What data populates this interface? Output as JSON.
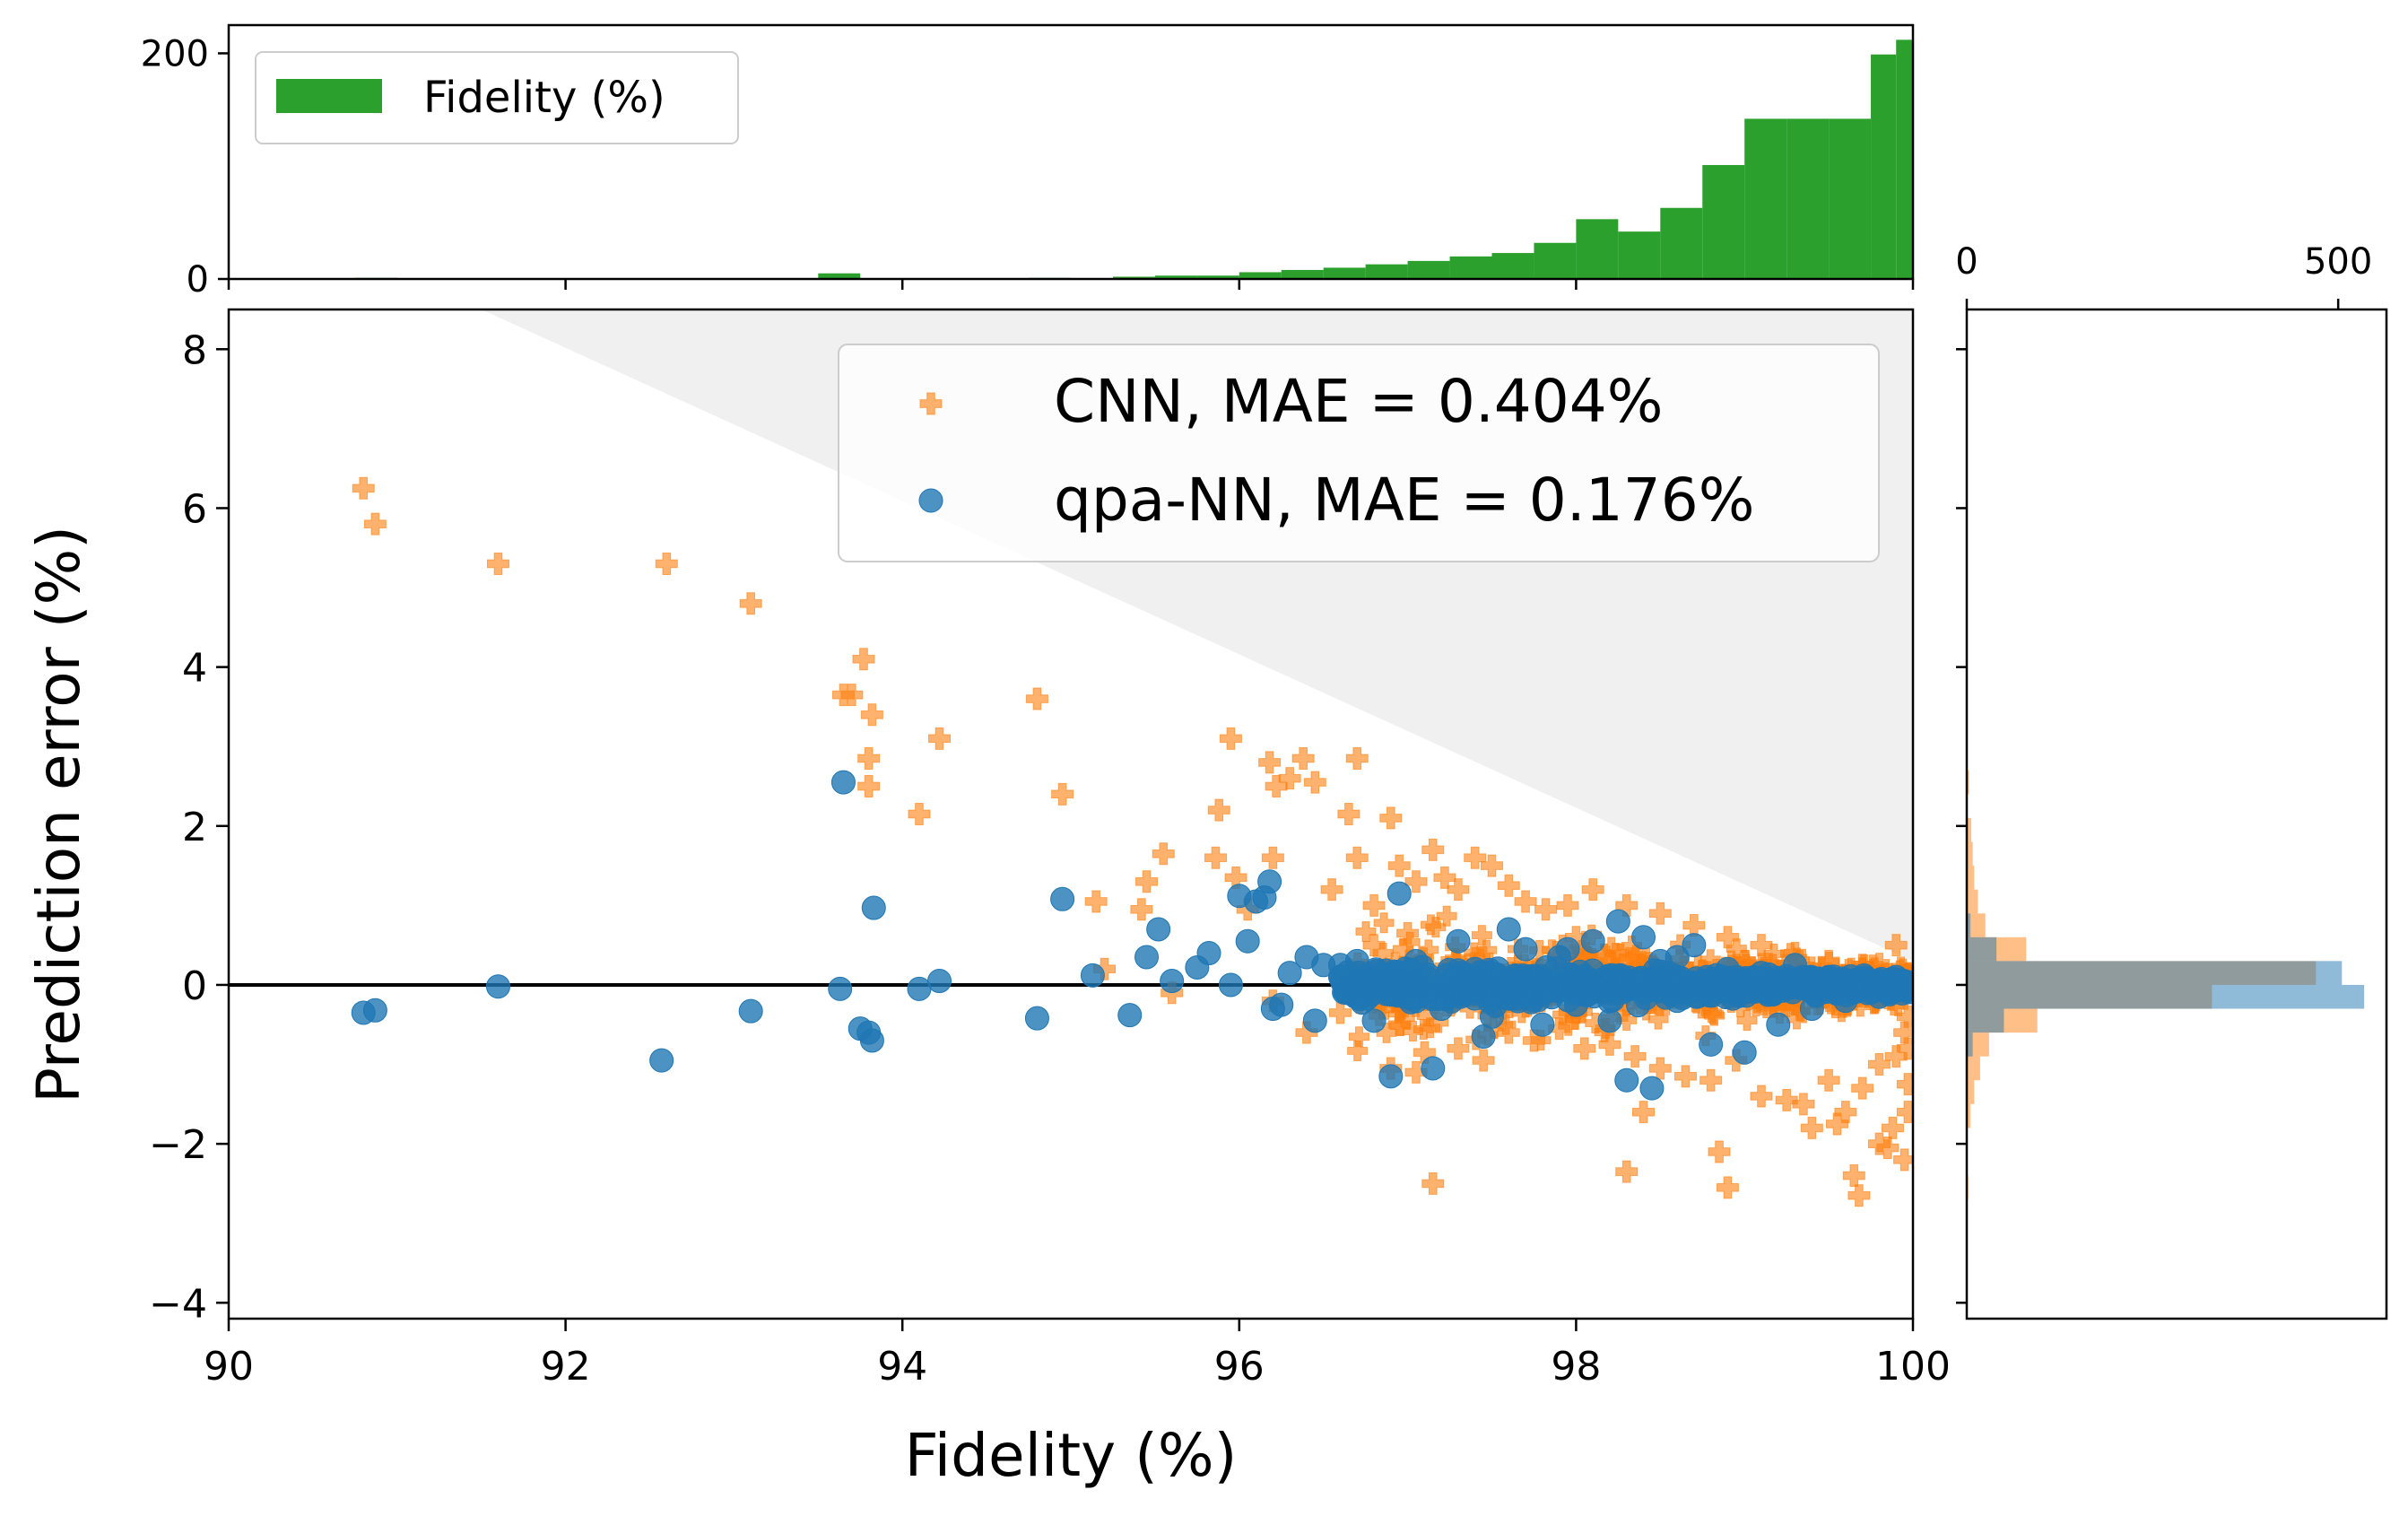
{
  "chart_data": [
    {
      "id": "main-scatter",
      "type": "scatter",
      "xlabel": "Fidelity (%)",
      "ylabel": "Prediction error (%)",
      "xlim": [
        90,
        100
      ],
      "ylim": [
        -4.2,
        8.5
      ],
      "xticks": [
        90,
        92,
        94,
        96,
        98,
        100
      ],
      "yticks": [
        -4,
        -2,
        0,
        2,
        4,
        6,
        8
      ],
      "ytick_labels": [
        "−4",
        "−2",
        "0",
        "2",
        "4",
        "6",
        "8"
      ],
      "reference_line_y": 0,
      "shaded_region": {
        "description": "points above fidelity ceiling",
        "vertices": [
          [
            91.5,
            8.5
          ],
          [
            100,
            8.5
          ],
          [
            100,
            0.3
          ]
        ]
      },
      "legend_position": "top-right",
      "series": [
        {
          "name": "CNN, MAE = 0.404%",
          "marker": "plus",
          "color": "#ff7f0e",
          "points": [
            [
              90.8,
              6.25
            ],
            [
              90.87,
              5.8
            ],
            [
              91.6,
              5.3
            ],
            [
              92.6,
              5.3
            ],
            [
              93.1,
              4.8
            ],
            [
              93.65,
              3.65
            ],
            [
              93.7,
              3.65
            ],
            [
              93.77,
              4.1
            ],
            [
              93.82,
              3.4
            ],
            [
              93.8,
              2.85
            ],
            [
              93.8,
              2.5
            ],
            [
              94.1,
              2.15
            ],
            [
              94.22,
              3.1
            ],
            [
              94.8,
              3.6
            ],
            [
              94.95,
              2.4
            ],
            [
              95.15,
              1.05
            ],
            [
              95.55,
              1.65
            ],
            [
              95.45,
              1.3
            ],
            [
              95.42,
              0.95
            ],
            [
              95.86,
              1.6
            ],
            [
              95.95,
              3.1
            ],
            [
              95.88,
              2.2
            ],
            [
              95.98,
              1.35
            ],
            [
              96.05,
              0.95
            ],
            [
              96.2,
              1.6
            ],
            [
              96.18,
              2.8
            ],
            [
              96.22,
              2.5
            ],
            [
              96.3,
              2.6
            ],
            [
              96.38,
              2.85
            ],
            [
              96.45,
              2.55
            ],
            [
              96.55,
              1.2
            ],
            [
              96.65,
              2.15
            ],
            [
              96.7,
              2.85
            ],
            [
              96.7,
              1.6
            ],
            [
              96.8,
              1.0
            ],
            [
              96.9,
              2.1
            ],
            [
              96.95,
              1.5
            ],
            [
              97.05,
              1.3
            ],
            [
              97.15,
              1.7
            ],
            [
              97.22,
              1.35
            ],
            [
              97.3,
              1.2
            ],
            [
              97.4,
              1.6
            ],
            [
              97.5,
              1.5
            ],
            [
              97.6,
              1.25
            ],
            [
              97.7,
              1.05
            ],
            [
              97.82,
              0.95
            ],
            [
              97.95,
              1.0
            ],
            [
              98.1,
              1.2
            ],
            [
              98.3,
              1.0
            ],
            [
              98.5,
              0.9
            ],
            [
              98.7,
              0.75
            ],
            [
              98.9,
              0.6
            ],
            [
              99.1,
              0.5
            ],
            [
              99.3,
              0.4
            ],
            [
              99.5,
              0.3
            ],
            [
              99.7,
              0.25
            ],
            [
              96.4,
              -0.6
            ],
            [
              96.6,
              -0.35
            ],
            [
              96.95,
              -0.5
            ],
            [
              97.1,
              -0.85
            ],
            [
              97.3,
              -0.8
            ],
            [
              97.45,
              -0.95
            ],
            [
              97.6,
              -0.6
            ],
            [
              97.75,
              -0.7
            ],
            [
              97.9,
              -0.55
            ],
            [
              98.05,
              -0.8
            ],
            [
              98.2,
              -0.75
            ],
            [
              98.35,
              -0.9
            ],
            [
              98.5,
              -1.05
            ],
            [
              98.65,
              -1.15
            ],
            [
              98.8,
              -1.2
            ],
            [
              98.95,
              -0.95
            ],
            [
              99.1,
              -1.4
            ],
            [
              99.25,
              -1.45
            ],
            [
              99.35,
              -1.5
            ],
            [
              99.5,
              -1.2
            ],
            [
              99.6,
              -1.6
            ],
            [
              99.7,
              -1.3
            ],
            [
              99.8,
              -1.0
            ],
            [
              99.9,
              -0.9
            ],
            [
              99.95,
              -0.6
            ],
            [
              99.88,
              -1.8
            ],
            [
              99.8,
              -2.0
            ],
            [
              99.95,
              -2.2
            ],
            [
              99.85,
              -2.05
            ],
            [
              99.65,
              -2.4
            ],
            [
              99.68,
              -2.65
            ],
            [
              98.9,
              -2.55
            ],
            [
              98.85,
              -2.1
            ],
            [
              98.3,
              -2.35
            ],
            [
              98.4,
              -1.6
            ],
            [
              97.15,
              -2.5
            ],
            [
              99.4,
              -1.8
            ],
            [
              99.55,
              -1.75
            ],
            [
              98.0,
              -0.35
            ],
            [
              97.0,
              0.65
            ],
            [
              96.8,
              0.5
            ],
            [
              95.2,
              0.2
            ],
            [
              95.6,
              -0.1
            ],
            [
              96.2,
              -0.2
            ],
            [
              96.9,
              -1.05
            ],
            [
              97.05,
              -1.1
            ],
            [
              99.97,
              -0.4
            ],
            [
              99.97,
              -0.8
            ],
            [
              99.97,
              -1.25
            ],
            [
              99.97,
              -1.6
            ],
            [
              99.9,
              0.5
            ],
            [
              99.0,
              0.3
            ],
            [
              98.0,
              0.6
            ]
          ]
        },
        {
          "name": "qpa-NN, MAE = 0.176%",
          "marker": "circle",
          "color": "#1f77b4",
          "points": [
            [
              90.8,
              -0.35
            ],
            [
              90.87,
              -0.32
            ],
            [
              91.6,
              -0.02
            ],
            [
              92.57,
              -0.95
            ],
            [
              93.1,
              -0.33
            ],
            [
              93.65,
              2.55
            ],
            [
              93.63,
              -0.05
            ],
            [
              93.75,
              -0.55
            ],
            [
              93.8,
              -0.6
            ],
            [
              93.82,
              -0.7
            ],
            [
              93.83,
              0.97
            ],
            [
              94.1,
              -0.05
            ],
            [
              94.22,
              0.05
            ],
            [
              94.8,
              -0.42
            ],
            [
              94.95,
              1.08
            ],
            [
              95.13,
              0.12
            ],
            [
              95.35,
              -0.38
            ],
            [
              95.45,
              0.35
            ],
            [
              95.52,
              0.7
            ],
            [
              95.6,
              0.05
            ],
            [
              95.75,
              0.22
            ],
            [
              95.82,
              0.4
            ],
            [
              95.95,
              0.0
            ],
            [
              96.0,
              1.12
            ],
            [
              96.05,
              0.55
            ],
            [
              96.1,
              1.05
            ],
            [
              96.15,
              1.1
            ],
            [
              96.18,
              1.3
            ],
            [
              96.2,
              -0.3
            ],
            [
              96.25,
              -0.25
            ],
            [
              96.3,
              0.15
            ],
            [
              96.4,
              0.35
            ],
            [
              96.45,
              -0.45
            ],
            [
              96.5,
              0.25
            ],
            [
              96.6,
              0.1
            ],
            [
              96.7,
              0.3
            ],
            [
              96.8,
              -0.45
            ],
            [
              96.9,
              -1.15
            ],
            [
              96.95,
              1.15
            ],
            [
              97.05,
              0.3
            ],
            [
              97.15,
              -1.05
            ],
            [
              97.2,
              -0.3
            ],
            [
              97.3,
              0.55
            ],
            [
              97.4,
              0.2
            ],
            [
              97.5,
              -0.4
            ],
            [
              97.6,
              0.7
            ],
            [
              97.7,
              0.45
            ],
            [
              97.8,
              -0.5
            ],
            [
              97.9,
              0.35
            ],
            [
              98.0,
              -0.25
            ],
            [
              98.1,
              0.55
            ],
            [
              98.2,
              -0.45
            ],
            [
              98.3,
              -1.2
            ],
            [
              98.45,
              -1.3
            ],
            [
              98.5,
              0.3
            ],
            [
              98.6,
              -0.2
            ],
            [
              98.7,
              0.5
            ],
            [
              98.8,
              -0.75
            ],
            [
              98.9,
              0.2
            ],
            [
              99.0,
              -0.85
            ],
            [
              99.1,
              0.15
            ],
            [
              99.2,
              -0.5
            ],
            [
              99.3,
              0.25
            ],
            [
              99.4,
              -0.3
            ],
            [
              99.5,
              0.1
            ],
            [
              99.6,
              -0.2
            ],
            [
              99.7,
              0.05
            ],
            [
              99.8,
              -0.15
            ],
            [
              99.9,
              0.1
            ],
            [
              99.95,
              -0.05
            ],
            [
              98.25,
              0.8
            ],
            [
              98.4,
              0.6
            ],
            [
              97.45,
              -0.65
            ],
            [
              98.6,
              0.35
            ],
            [
              97.95,
              0.45
            ],
            [
              96.75,
              0.05
            ],
            [
              96.6,
              0.25
            ]
          ]
        }
      ],
      "dense_cluster_note": "many overlapping points between fidelity 96.6 and 100"
    },
    {
      "id": "top-histogram",
      "type": "bar",
      "orientation": "vertical",
      "legend": "Fidelity (%)",
      "legend_position": "top-left",
      "color": "#2ca02c",
      "yticks": [
        0,
        200
      ],
      "ylim": [
        0,
        225
      ],
      "bin_width": 0.25,
      "bins": [
        {
          "x0": 90.75,
          "count": 1
        },
        {
          "x0": 93.5,
          "count": 5
        },
        {
          "x0": 94.75,
          "count": 1
        },
        {
          "x0": 95.25,
          "count": 2
        },
        {
          "x0": 95.5,
          "count": 3
        },
        {
          "x0": 95.75,
          "count": 3
        },
        {
          "x0": 96.0,
          "count": 6
        },
        {
          "x0": 96.25,
          "count": 8
        },
        {
          "x0": 96.5,
          "count": 10
        },
        {
          "x0": 96.75,
          "count": 13
        },
        {
          "x0": 97.0,
          "count": 16
        },
        {
          "x0": 97.25,
          "count": 20
        },
        {
          "x0": 97.5,
          "count": 23
        },
        {
          "x0": 97.75,
          "count": 32
        },
        {
          "x0": 98.0,
          "count": 53
        },
        {
          "x0": 98.25,
          "count": 42
        },
        {
          "x0": 98.5,
          "count": 63
        },
        {
          "x0": 98.75,
          "count": 101
        },
        {
          "x0": 99.0,
          "count": 142
        },
        {
          "x0": 99.25,
          "count": 142
        },
        {
          "x0": 99.5,
          "count": 142
        },
        {
          "x0": 99.75,
          "count": 199
        },
        {
          "x0": 99.9,
          "count": 212
        }
      ]
    },
    {
      "id": "right-histogram",
      "type": "bar",
      "orientation": "horizontal",
      "xticks": [
        0,
        500
      ],
      "xlim": [
        0,
        565
      ],
      "bin_width": 0.3,
      "series": [
        {
          "name": "CNN",
          "color": "#ff7f0e",
          "bins": [
            {
              "y0": 2.4,
              "count": 3
            },
            {
              "y0": 1.8,
              "count": 6
            },
            {
              "y0": 1.5,
              "count": 8
            },
            {
              "y0": 1.2,
              "count": 10
            },
            {
              "y0": 0.9,
              "count": 15
            },
            {
              "y0": 0.6,
              "count": 25
            },
            {
              "y0": 0.3,
              "count": 80
            },
            {
              "y0": 0.0,
              "count": 470
            },
            {
              "y0": -0.3,
              "count": 330
            },
            {
              "y0": -0.6,
              "count": 95
            },
            {
              "y0": -0.9,
              "count": 30
            },
            {
              "y0": -1.2,
              "count": 18
            },
            {
              "y0": -1.5,
              "count": 10
            },
            {
              "y0": -1.8,
              "count": 5
            },
            {
              "y0": -2.7,
              "count": 2
            }
          ]
        },
        {
          "name": "qpa-NN",
          "color": "#1f77b4",
          "bins": [
            {
              "y0": 0.6,
              "count": 5
            },
            {
              "y0": 0.3,
              "count": 40
            },
            {
              "y0": 0.0,
              "count": 505
            },
            {
              "y0": -0.3,
              "count": 535
            },
            {
              "y0": -0.6,
              "count": 50
            },
            {
              "y0": -0.9,
              "count": 8
            }
          ]
        }
      ]
    }
  ],
  "labels": {
    "main_xlabel": "Fidelity (%)",
    "main_ylabel": "Prediction error (%)",
    "legend_cnn": "CNN, MAE = 0.404%",
    "legend_qpa": "qpa-NN, MAE = 0.176%",
    "top_legend": "Fidelity (%)"
  }
}
